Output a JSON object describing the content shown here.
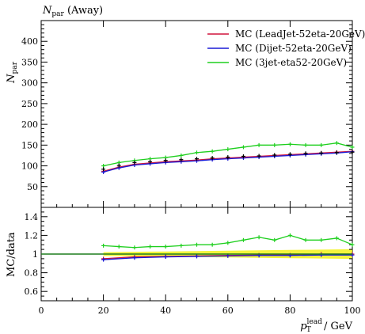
{
  "chart_data": {
    "type": "scatter",
    "title": {
      "main": "N",
      "sub": "par",
      "rest": " (Away)"
    },
    "xlabel": {
      "pre": "p",
      "sub": "T",
      "sup": "lead",
      "post": "  / GeV"
    },
    "top_ylabel": {
      "main": "N",
      "sub": "par"
    },
    "bottom_ylabel": "MC/data",
    "xlim": [
      0,
      100
    ],
    "top_ylim": [
      0,
      450
    ],
    "bottom_ylim": [
      0.5,
      1.5
    ],
    "x_ticks": [
      "0",
      "20",
      "40",
      "60",
      "80",
      "100"
    ],
    "top_y_ticks": [
      "50",
      "100",
      "150",
      "200",
      "250",
      "300",
      "350",
      "400"
    ],
    "bottom_y_ticks": [
      "0.6",
      "0.8",
      "1",
      "1.2",
      "1.4"
    ],
    "legend_position": "top-right",
    "series": [
      {
        "name": "MC (LeadJet-52eta-20GeV)",
        "color": "#d0143c",
        "x": [
          20,
          25,
          30,
          35,
          40,
          45,
          50,
          55,
          60,
          65,
          70,
          75,
          80,
          85,
          90,
          95,
          100
        ],
        "y": [
          87,
          97,
          104,
          107,
          110,
          112,
          114,
          117,
          119,
          121,
          123,
          125,
          127,
          129,
          131,
          133,
          135
        ]
      },
      {
        "name": "MC (Dijet-52eta-20GeV)",
        "color": "#1a1ad6",
        "x": [
          20,
          25,
          30,
          35,
          40,
          45,
          50,
          55,
          60,
          65,
          70,
          75,
          80,
          85,
          90,
          95,
          100
        ],
        "y": [
          85,
          95,
          102,
          105,
          108,
          110,
          112,
          115,
          117,
          119,
          121,
          123,
          125,
          127,
          129,
          131,
          134
        ]
      },
      {
        "name": "MC (3jet-eta52-20GeV)",
        "color": "#1ecf1e",
        "x": [
          20,
          25,
          30,
          35,
          40,
          45,
          50,
          55,
          60,
          65,
          70,
          75,
          80,
          85,
          90,
          95,
          100
        ],
        "y": [
          100,
          108,
          113,
          117,
          120,
          125,
          132,
          135,
          140,
          145,
          150,
          150,
          152,
          150,
          150,
          155,
          145
        ]
      }
    ],
    "data": {
      "x": [
        20,
        25,
        30,
        35,
        40,
        45,
        50,
        55,
        60,
        65,
        70,
        75,
        80,
        85,
        90,
        95,
        100
      ],
      "y": [
        92,
        101,
        108,
        110,
        113,
        115,
        117,
        119,
        121,
        123,
        124,
        126,
        128,
        130,
        131,
        132,
        133
      ]
    },
    "ratio": {
      "series": [
        {
          "name": "MC (LeadJet-52eta-20GeV)",
          "color": "#d0143c",
          "x": [
            20,
            30,
            40,
            50,
            60,
            70,
            80,
            90,
            100
          ],
          "y": [
            0.95,
            0.97,
            0.975,
            0.98,
            0.985,
            0.99,
            0.99,
            1.0,
            1.0
          ]
        },
        {
          "name": "MC (Dijet-52eta-20GeV)",
          "color": "#1a1ad6",
          "x": [
            20,
            30,
            40,
            50,
            60,
            70,
            80,
            90,
            100
          ],
          "y": [
            0.94,
            0.96,
            0.97,
            0.975,
            0.98,
            0.985,
            0.985,
            0.99,
            0.99
          ]
        },
        {
          "name": "MC (3jet-eta52-20GeV)",
          "color": "#1ecf1e",
          "x": [
            20,
            25,
            30,
            35,
            40,
            45,
            50,
            55,
            60,
            65,
            70,
            75,
            80,
            85,
            90,
            95,
            100
          ],
          "y": [
            1.09,
            1.08,
            1.07,
            1.08,
            1.08,
            1.09,
            1.1,
            1.1,
            1.12,
            1.15,
            1.18,
            1.15,
            1.2,
            1.15,
            1.15,
            1.17,
            1.1
          ]
        }
      ]
    }
  }
}
